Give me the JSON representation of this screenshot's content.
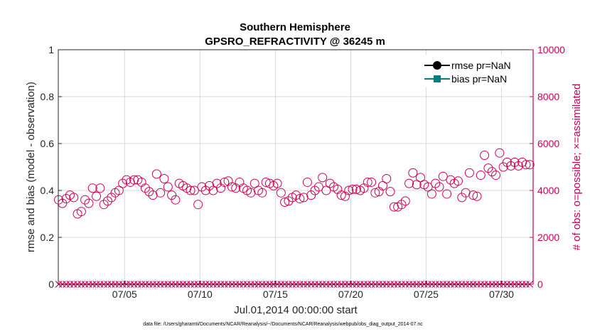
{
  "colors": {
    "left_axis": "#262626",
    "right_axis": "#cc0055",
    "grid": "#d9d9d9",
    "rmse": "#000000",
    "bias": "#008080"
  },
  "figure": {
    "title_line1": "Southern Hemisphere",
    "title_line2": "GPSRO_REFRACTIVITY @ 36245 m",
    "footer": "data file: /Users/gharamti/Documents/NCAR/Reanalysis/~/Documents/NCAR/Reanalysis/webpub/obs_diag_output_2014-07.nc"
  },
  "chart_data": {
    "type": "scatter",
    "xlabel": "Jul.01,2014 00:00:00 start",
    "ylabel": "rmse and bias (model - observation)",
    "y2label": "# of obs: o=possible; ×=assimilated",
    "xlim": [
      0.6,
      32.1
    ],
    "ylim": [
      0,
      1
    ],
    "y2lim": [
      0,
      10000
    ],
    "xticks": [
      {
        "x": 5,
        "label": "07/05"
      },
      {
        "x": 10,
        "label": "07/10"
      },
      {
        "x": 15,
        "label": "07/15"
      },
      {
        "x": 20,
        "label": "07/20"
      },
      {
        "x": 25,
        "label": "07/25"
      },
      {
        "x": 30,
        "label": "07/30"
      }
    ],
    "yticks": [
      "0",
      "0.2",
      "0.4",
      "0.6",
      "0.8",
      "1"
    ],
    "y2ticks": [
      "0",
      "2000",
      "4000",
      "6000",
      "8000",
      "10000"
    ],
    "legend": {
      "position": "top-right",
      "entries": [
        {
          "label": "rmse pr=NaN",
          "marker": "circle",
          "color": "#000000"
        },
        {
          "label": "bias pr=NaN",
          "marker": "square",
          "color": "#008080"
        }
      ]
    },
    "series": [
      {
        "name": "possible",
        "axis": "right",
        "marker": "open-circle",
        "x": [
          0.625,
          0.875,
          1.125,
          1.375,
          1.625,
          1.875,
          2.125,
          2.375,
          2.625,
          2.875,
          3.125,
          3.375,
          3.625,
          3.875,
          4.125,
          4.375,
          4.625,
          4.875,
          5.125,
          5.375,
          5.625,
          5.875,
          6.125,
          6.375,
          6.625,
          6.875,
          7.125,
          7.375,
          7.625,
          7.875,
          8.125,
          8.375,
          8.625,
          8.875,
          9.125,
          9.375,
          9.625,
          9.875,
          10.125,
          10.375,
          10.625,
          10.875,
          11.125,
          11.375,
          11.625,
          11.875,
          12.125,
          12.375,
          12.625,
          12.875,
          13.125,
          13.375,
          13.625,
          13.875,
          14.125,
          14.375,
          14.625,
          14.875,
          15.125,
          15.375,
          15.625,
          15.875,
          16.125,
          16.375,
          16.625,
          16.875,
          17.125,
          17.375,
          17.625,
          17.875,
          18.125,
          18.375,
          18.625,
          18.875,
          19.125,
          19.375,
          19.625,
          19.875,
          20.125,
          20.375,
          20.625,
          20.875,
          21.125,
          21.375,
          21.625,
          21.875,
          22.125,
          22.375,
          22.625,
          22.875,
          23.125,
          23.375,
          23.625,
          23.875,
          24.125,
          24.375,
          24.625,
          24.875,
          25.125,
          25.375,
          25.625,
          25.875,
          26.125,
          26.375,
          26.625,
          26.875,
          27.125,
          27.375,
          27.625,
          27.875,
          28.125,
          28.375,
          28.625,
          28.875,
          29.125,
          29.375,
          29.625,
          29.875,
          30.125,
          30.375,
          30.625,
          30.875,
          31.125,
          31.375,
          31.625,
          31.875
        ],
        "y": [
          3600,
          3450,
          3650,
          3800,
          3700,
          3000,
          3100,
          3600,
          3450,
          4100,
          3750,
          4100,
          3400,
          3550,
          3700,
          3900,
          4000,
          4300,
          4450,
          4350,
          4450,
          4450,
          4350,
          4100,
          3950,
          3800,
          4700,
          3900,
          4500,
          4150,
          3800,
          3600,
          4300,
          4200,
          4100,
          4000,
          4000,
          3400,
          4150,
          4000,
          4200,
          4000,
          4300,
          4100,
          4350,
          4400,
          4150,
          4100,
          4350,
          4100,
          4000,
          3900,
          4300,
          4000,
          3900,
          4350,
          4300,
          4200,
          4300,
          3900,
          3500,
          3550,
          3700,
          3800,
          3650,
          3700,
          4350,
          3800,
          4000,
          4150,
          4550,
          4000,
          4300,
          4150,
          4050,
          3800,
          3750,
          4000,
          4050,
          4050,
          4000,
          4100,
          4350,
          4350,
          3900,
          3950,
          4200,
          4500,
          3950,
          3300,
          3300,
          3400,
          3550,
          4300,
          4750,
          4250,
          4550,
          4250,
          4150,
          3850,
          4300,
          4150,
          4600,
          3850,
          4450,
          4300,
          4400,
          3700,
          3900,
          4750,
          3800,
          3750,
          4650,
          5500,
          4950,
          4800,
          4650,
          5600,
          5000,
          5200,
          5050,
          5200,
          5050,
          5200,
          5100,
          5100
        ]
      },
      {
        "name": "assimilated",
        "axis": "right",
        "marker": "x",
        "x": [
          0.625,
          0.875,
          1.125,
          1.375,
          1.625,
          1.875,
          2.125,
          2.375,
          2.625,
          2.875,
          3.125,
          3.375,
          3.625,
          3.875,
          4.125,
          4.375,
          4.625,
          4.875,
          5.125,
          5.375,
          5.625,
          5.875,
          6.125,
          6.375,
          6.625,
          6.875,
          7.125,
          7.375,
          7.625,
          7.875,
          8.125,
          8.375,
          8.625,
          8.875,
          9.125,
          9.375,
          9.625,
          9.875,
          10.125,
          10.375,
          10.625,
          10.875,
          11.125,
          11.375,
          11.625,
          11.875,
          12.125,
          12.375,
          12.625,
          12.875,
          13.125,
          13.375,
          13.625,
          13.875,
          14.125,
          14.375,
          14.625,
          14.875,
          15.125,
          15.375,
          15.625,
          15.875,
          16.125,
          16.375,
          16.625,
          16.875,
          17.125,
          17.375,
          17.625,
          17.875,
          18.125,
          18.375,
          18.625,
          18.875,
          19.125,
          19.375,
          19.625,
          19.875,
          20.125,
          20.375,
          20.625,
          20.875,
          21.125,
          21.375,
          21.625,
          21.875,
          22.125,
          22.375,
          22.625,
          22.875,
          23.125,
          23.375,
          23.625,
          23.875,
          24.125,
          24.375,
          24.625,
          24.875,
          25.125,
          25.375,
          25.625,
          25.875,
          26.125,
          26.375,
          26.625,
          26.875,
          27.125,
          27.375,
          27.625,
          27.875,
          28.125,
          28.375,
          28.625,
          28.875,
          29.125,
          29.375,
          29.625,
          29.875,
          30.125,
          30.375,
          30.625,
          30.875,
          31.125,
          31.375,
          31.625,
          31.875
        ],
        "y": [
          0,
          0,
          0,
          0,
          0,
          0,
          0,
          0,
          0,
          0,
          0,
          0,
          0,
          0,
          0,
          0,
          0,
          0,
          0,
          0,
          0,
          0,
          0,
          0,
          0,
          0,
          0,
          0,
          0,
          0,
          0,
          0,
          0,
          0,
          0,
          0,
          0,
          0,
          0,
          0,
          0,
          0,
          0,
          0,
          0,
          0,
          0,
          0,
          0,
          0,
          0,
          0,
          0,
          0,
          0,
          0,
          0,
          0,
          0,
          0,
          0,
          0,
          0,
          0,
          0,
          0,
          0,
          0,
          0,
          0,
          0,
          0,
          0,
          0,
          0,
          0,
          0,
          0,
          0,
          0,
          0,
          0,
          0,
          0,
          0,
          0,
          0,
          0,
          0,
          0,
          0,
          0,
          0,
          0,
          0,
          0,
          0,
          0,
          0,
          0,
          0,
          0,
          0,
          0,
          0,
          0,
          0,
          0,
          0,
          0,
          0,
          0,
          0,
          0,
          0,
          0,
          0,
          0,
          0,
          0,
          0,
          0,
          0,
          0,
          0,
          0
        ]
      }
    ]
  }
}
